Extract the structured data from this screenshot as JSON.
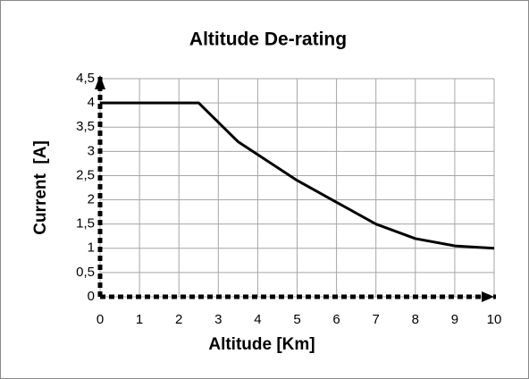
{
  "chart_data": {
    "type": "line",
    "title": "Altitude De-rating",
    "x_label": "Altitude [Km]",
    "y_label": "Current  [A]",
    "x": [
      0,
      2.5,
      3.5,
      5,
      6,
      7,
      8,
      9,
      10
    ],
    "values": [
      4,
      4,
      3.2,
      2.4,
      1.95,
      1.5,
      1.2,
      1.05,
      1.0
    ],
    "color": "#000000",
    "xlim": [
      0,
      10
    ],
    "xticks": [
      0,
      1,
      2,
      3,
      4,
      5,
      6,
      7,
      8,
      9,
      10
    ],
    "ylim": [
      0,
      4.5
    ],
    "yticks": [
      0,
      {
        "value": 0.5,
        "label": "0,5"
      },
      1,
      {
        "value": 1.5,
        "label": "1,5"
      },
      2,
      {
        "value": 2.5,
        "label": "2,5"
      },
      3,
      {
        "value": 3.5,
        "label": "3,5"
      },
      4,
      {
        "value": 4.5,
        "label": "4,5"
      }
    ],
    "grid": true
  }
}
